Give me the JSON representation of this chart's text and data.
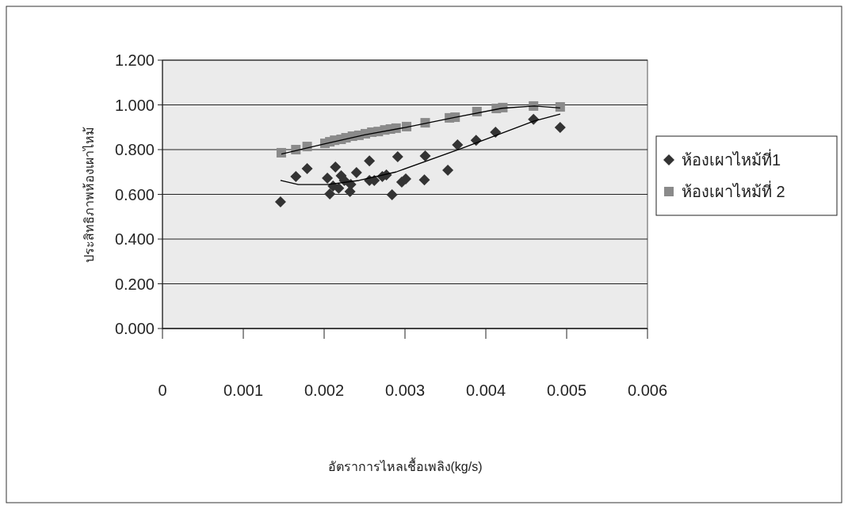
{
  "chart_data": {
    "type": "scatter",
    "xlabel": "อัตราการไหลเชื้อเพลิง(kg/s)",
    "ylabel": "ประสิทธิภาพห้องเผาไหม้",
    "xlim": [
      0,
      0.006
    ],
    "xticks": [
      0,
      0.001,
      0.002,
      0.003,
      0.004,
      0.005,
      0.006
    ],
    "ylim": [
      0,
      1.2
    ],
    "yticks": [
      {
        "value": 0,
        "label": "0.000"
      },
      {
        "value": 0.2,
        "label": "0.200"
      },
      {
        "value": 0.4,
        "label": "0.400"
      },
      {
        "value": 0.6,
        "label": "0.600"
      },
      {
        "value": 0.8,
        "label": "0.800"
      },
      {
        "value": 1,
        "label": "1.000"
      },
      {
        "value": 1.2,
        "label": "1.200"
      }
    ],
    "grid": "y",
    "legend": "right",
    "series": [
      {
        "name": "ห้องเผาไหม้ที่1",
        "color": "#333333",
        "marker": "diamond",
        "x": [
          0.00146,
          0.00165,
          0.00179,
          0.00204,
          0.00207,
          0.00214,
          0.00211,
          0.00221,
          0.00218,
          0.00225,
          0.00232,
          0.00233,
          0.0024,
          0.00256,
          0.00256,
          0.00262,
          0.00272,
          0.00277,
          0.00284,
          0.00291,
          0.00296,
          0.00301,
          0.00324,
          0.00325,
          0.00353,
          0.00365,
          0.00388,
          0.00412,
          0.00459,
          0.00492
        ],
        "values": [
          0.566,
          0.68,
          0.715,
          0.673,
          0.602,
          0.722,
          0.637,
          0.683,
          0.627,
          0.662,
          0.612,
          0.644,
          0.697,
          0.75,
          0.662,
          0.662,
          0.68,
          0.687,
          0.598,
          0.768,
          0.655,
          0.669,
          0.665,
          0.772,
          0.708,
          0.821,
          0.842,
          0.878,
          0.935,
          0.899
        ]
      },
      {
        "name": "ห้องเผาไหม้ที่ 2",
        "color": "#8a8a8a",
        "marker": "square",
        "x": [
          0.00147,
          0.00165,
          0.00179,
          0.00201,
          0.00207,
          0.00213,
          0.00221,
          0.00227,
          0.00235,
          0.00243,
          0.00251,
          0.00259,
          0.00267,
          0.00275,
          0.00282,
          0.00289,
          0.00302,
          0.00325,
          0.00355,
          0.00362,
          0.00389,
          0.00413,
          0.00421,
          0.00459,
          0.00492
        ],
        "values": [
          0.786,
          0.8,
          0.814,
          0.828,
          0.835,
          0.842,
          0.846,
          0.853,
          0.86,
          0.864,
          0.871,
          0.878,
          0.881,
          0.888,
          0.892,
          0.896,
          0.903,
          0.92,
          0.942,
          0.945,
          0.97,
          0.984,
          0.988,
          0.995,
          0.991
        ]
      },
      {
        "type": "line",
        "color": "#000000",
        "marker": "none",
        "x": [
          0.00146,
          0.00168,
          0.00204,
          0.00243,
          0.00289,
          0.00371,
          0.00459,
          0.00492
        ],
        "values": [
          0.662,
          0.644,
          0.644,
          0.662,
          0.7,
          0.807,
          0.927,
          0.959
        ]
      },
      {
        "type": "line",
        "color": "#000000",
        "marker": "none",
        "x": [
          0.00147,
          0.00201,
          0.0025,
          0.003,
          0.0036,
          0.0042,
          0.0046,
          0.00492
        ],
        "values": [
          0.78,
          0.826,
          0.866,
          0.899,
          0.943,
          0.985,
          0.995,
          0.986
        ]
      }
    ]
  }
}
